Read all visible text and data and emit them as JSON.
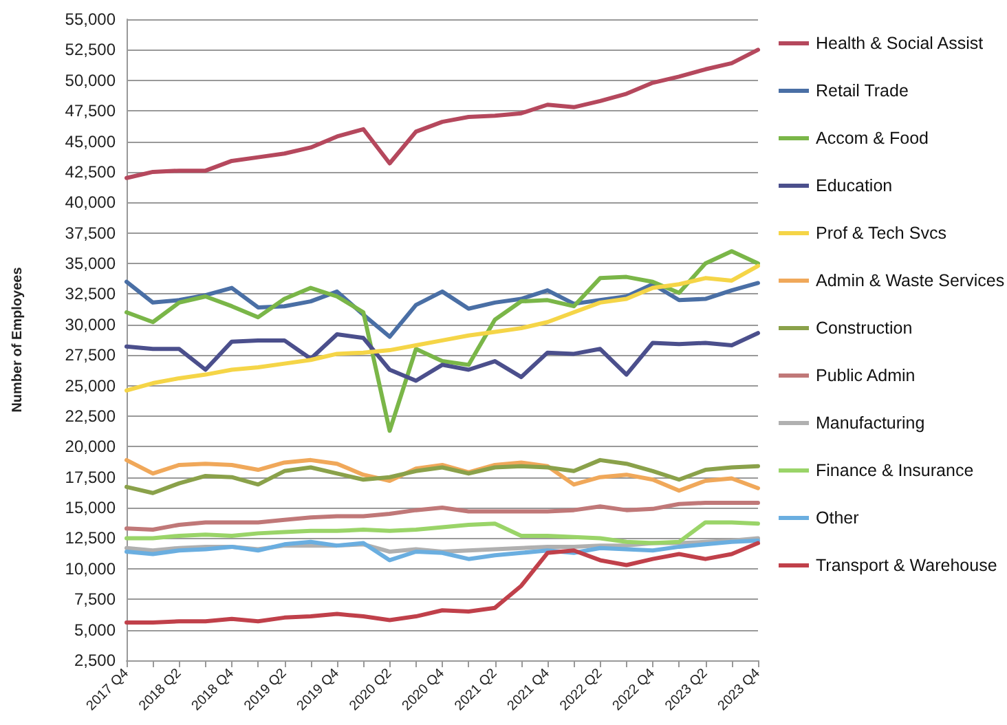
{
  "chart_data": {
    "type": "line",
    "ylabel": "Number of Employees",
    "categories": [
      "2017 Q4",
      null,
      "2018 Q2",
      null,
      "2018 Q4",
      null,
      "2019 Q2",
      null,
      "2019 Q4",
      null,
      "2020 Q2",
      null,
      "2020 Q4",
      null,
      "2021 Q2",
      null,
      "2021 Q4",
      null,
      "2022 Q2",
      null,
      "2022 Q4",
      null,
      "2023 Q2",
      null,
      "2023 Q4"
    ],
    "series": [
      {
        "name": "Health & Social Assist",
        "color": "#b5485d",
        "values": [
          42000,
          42500,
          42600,
          42600,
          43400,
          43700,
          44000,
          44500,
          45400,
          46000,
          43200,
          45800,
          46600,
          47000,
          47100,
          47300,
          48000,
          47800,
          48300,
          48900,
          49800,
          50300,
          50900,
          51400,
          52500
        ]
      },
      {
        "name": "Retail Trade",
        "color": "#4a6fa5",
        "values": [
          33500,
          31800,
          32000,
          32400,
          33000,
          31400,
          31500,
          31900,
          32700,
          30800,
          29000,
          31600,
          32700,
          31300,
          31800,
          32100,
          32800,
          31700,
          32000,
          32300,
          33300,
          32000,
          32100,
          32800,
          33400
        ]
      },
      {
        "name": "Accom & Food",
        "color": "#7ab648",
        "values": [
          31000,
          30200,
          31800,
          32300,
          31500,
          30600,
          32100,
          33000,
          32300,
          31000,
          21300,
          28000,
          27000,
          26700,
          30400,
          31900,
          32000,
          31500,
          33800,
          33900,
          33500,
          32600,
          35000,
          36000,
          35000
        ]
      },
      {
        "name": "Education",
        "color": "#4b4f8c",
        "values": [
          28200,
          28000,
          28000,
          26300,
          28600,
          28700,
          28700,
          27200,
          29200,
          28900,
          26300,
          25400,
          26700,
          26300,
          27000,
          25700,
          27700,
          27600,
          28000,
          25900,
          28500,
          28400,
          28500,
          28300,
          29300
        ]
      },
      {
        "name": "Prof & Tech Svcs",
        "color": "#f5d547",
        "values": [
          24600,
          25200,
          25600,
          25900,
          26300,
          26500,
          26800,
          27100,
          27600,
          27700,
          27900,
          28300,
          28700,
          29100,
          29400,
          29700,
          30200,
          31000,
          31800,
          32100,
          33000,
          33300,
          33800,
          33600,
          34800
        ]
      },
      {
        "name": "Admin & Waste Services",
        "color": "#f0a85a",
        "values": [
          18900,
          17800,
          18500,
          18600,
          18500,
          18100,
          18700,
          18900,
          18600,
          17700,
          17200,
          18200,
          18500,
          17900,
          18500,
          18700,
          18400,
          16900,
          17500,
          17700,
          17300,
          16400,
          17200,
          17400,
          16600
        ]
      },
      {
        "name": "Construction",
        "color": "#8aa14a",
        "values": [
          16700,
          16200,
          17000,
          17600,
          17500,
          16900,
          18000,
          18300,
          17800,
          17300,
          17500,
          18000,
          18300,
          17800,
          18300,
          18400,
          18300,
          18000,
          18900,
          18600,
          18000,
          17300,
          18100,
          18300,
          18400
        ]
      },
      {
        "name": "Public Admin",
        "color": "#c07878",
        "values": [
          13300,
          13200,
          13600,
          13800,
          13800,
          13800,
          14000,
          14200,
          14300,
          14300,
          14500,
          14800,
          15000,
          14700,
          14700,
          14700,
          14700,
          14800,
          15100,
          14800,
          14900,
          15300,
          15400,
          15400,
          15400
        ]
      },
      {
        "name": "Manufacturing",
        "color": "#b0b0b0",
        "values": [
          11700,
          11500,
          11700,
          11800,
          11800,
          11600,
          11900,
          11900,
          11900,
          12000,
          11400,
          11600,
          11400,
          11500,
          11600,
          11700,
          11800,
          11800,
          11900,
          11900,
          12100,
          12100,
          12200,
          12300,
          12500
        ]
      },
      {
        "name": "Finance & Insurance",
        "color": "#9ad468",
        "values": [
          12500,
          12500,
          12700,
          12800,
          12700,
          12900,
          13000,
          13100,
          13100,
          13200,
          13100,
          13200,
          13400,
          13600,
          13700,
          12700,
          12700,
          12600,
          12500,
          12200,
          12100,
          12200,
          13800,
          13800,
          13700
        ]
      },
      {
        "name": "Other",
        "color": "#6aaee0",
        "values": [
          11400,
          11200,
          11500,
          11600,
          11800,
          11500,
          12000,
          12200,
          11900,
          12100,
          10700,
          11400,
          11300,
          10800,
          11100,
          11300,
          11500,
          11300,
          11700,
          11600,
          11500,
          11800,
          12000,
          12200,
          12300
        ]
      },
      {
        "name": "Transport & Warehouse",
        "color": "#c0404a",
        "values": [
          5600,
          5600,
          5700,
          5700,
          5900,
          5700,
          6000,
          6100,
          6300,
          6100,
          5800,
          6100,
          6600,
          6500,
          6800,
          8600,
          11300,
          11500,
          10700,
          10300,
          10800,
          11200,
          10800,
          11200,
          12100
        ]
      }
    ],
    "ylim": [
      2500,
      55000
    ],
    "yticks": [
      {
        "value": 2500,
        "label": "2,500"
      },
      {
        "value": 5000,
        "label": "5,000"
      },
      {
        "value": 7500,
        "label": "7,500"
      },
      {
        "value": 10000,
        "label": "10,000"
      },
      {
        "value": 12500,
        "label": "12,500"
      },
      {
        "value": 15000,
        "label": "15,000"
      },
      {
        "value": 17500,
        "label": "17,500"
      },
      {
        "value": 20000,
        "label": "20,000"
      },
      {
        "value": 22500,
        "label": "22,500"
      },
      {
        "value": 25000,
        "label": "25,000"
      },
      {
        "value": 27500,
        "label": "27,500"
      },
      {
        "value": 30000,
        "label": "30,000"
      },
      {
        "value": 32500,
        "label": "32,500"
      },
      {
        "value": 35000,
        "label": "35,000"
      },
      {
        "value": 37500,
        "label": "37,500"
      },
      {
        "value": 40000,
        "label": "40,000"
      },
      {
        "value": 42500,
        "label": "42,500"
      },
      {
        "value": 45000,
        "label": "45,000"
      },
      {
        "value": 47500,
        "label": "47,500"
      },
      {
        "value": 50000,
        "label": "50,000"
      },
      {
        "value": 52500,
        "label": "52,500"
      },
      {
        "value": 55000,
        "label": "55,000"
      }
    ],
    "grid": "y",
    "legend": "right",
    "marker": "none",
    "line_style": "solid"
  }
}
